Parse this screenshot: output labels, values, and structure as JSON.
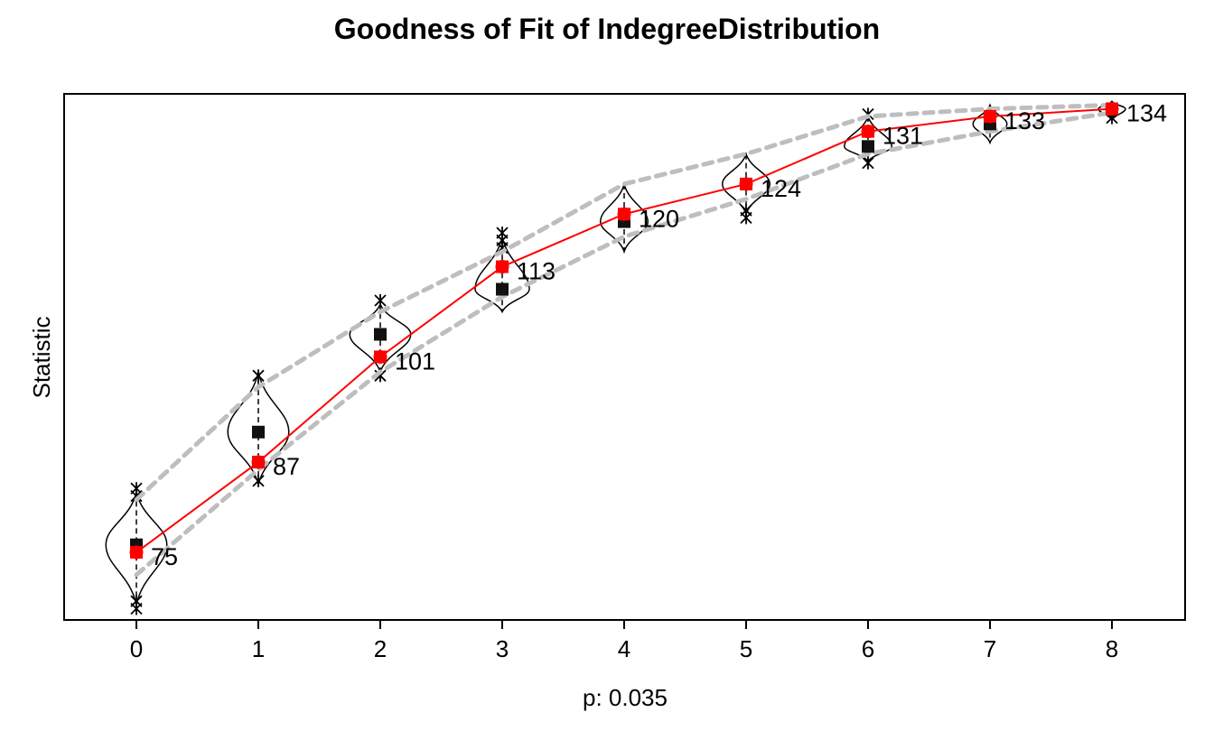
{
  "chart_data": {
    "type": "line",
    "title": "Goodness of Fit of IndegreeDistribution",
    "xlabel": "p: 0.035",
    "ylabel": "Statistic",
    "x": [
      0,
      1,
      2,
      3,
      4,
      5,
      6,
      7,
      8
    ],
    "xticks": [
      "0",
      "1",
      "2",
      "3",
      "4",
      "5",
      "6",
      "7",
      "8"
    ],
    "ylim": [
      66,
      136
    ],
    "grid": false,
    "series": [
      {
        "role": "observed",
        "values": [
          75,
          87,
          101,
          113,
          120,
          124,
          131,
          133,
          134
        ],
        "labels": [
          "75",
          "87",
          "101",
          "113",
          "120",
          "124",
          "131",
          "133",
          "134"
        ],
        "color": "#ff0000"
      },
      {
        "role": "simulated-mean",
        "values": [
          76,
          91,
          104,
          110,
          119,
          124,
          129,
          132,
          134
        ],
        "color": "#000000"
      },
      {
        "role": "band-upper",
        "values": [
          82,
          97,
          107,
          115,
          124,
          128,
          133,
          134,
          134.5
        ],
        "color": "#bebebe"
      },
      {
        "role": "band-lower",
        "values": [
          72,
          86,
          99,
          109,
          117,
          122,
          128,
          131,
          133.5
        ],
        "color": "#bebebe"
      }
    ],
    "distributions": [
      {
        "x": 0,
        "min": 68,
        "max": 83,
        "spread": 4.5,
        "outliers": [
          67.5,
          68.5,
          82.5,
          83.5
        ]
      },
      {
        "x": 1,
        "min": 84,
        "max": 99,
        "spread": 4.5,
        "outliers": [
          84.5,
          98.5
        ]
      },
      {
        "x": 2,
        "min": 99,
        "max": 108,
        "spread": 4.5,
        "outliers": [
          98.5,
          108.5
        ]
      },
      {
        "x": 3,
        "min": 107,
        "max": 117,
        "spread": 4.0,
        "outliers": [
          115.5,
          116.5,
          117.5
        ]
      },
      {
        "x": 4,
        "min": 115,
        "max": 124,
        "spread": 3.5,
        "outliers": []
      },
      {
        "x": 5,
        "min": 120,
        "max": 128,
        "spread": 3.5,
        "outliers": [
          119.5,
          120.5
        ]
      },
      {
        "x": 6,
        "min": 127,
        "max": 133,
        "spread": 3.5,
        "outliers": [
          126.8,
          133.3
        ]
      },
      {
        "x": 7,
        "min": 129.5,
        "max": 134.5,
        "spread": 2.5,
        "outliers": []
      },
      {
        "x": 8,
        "min": 132.5,
        "max": 135,
        "spread": 2.0,
        "outliers": [
          132.8
        ]
      }
    ]
  }
}
